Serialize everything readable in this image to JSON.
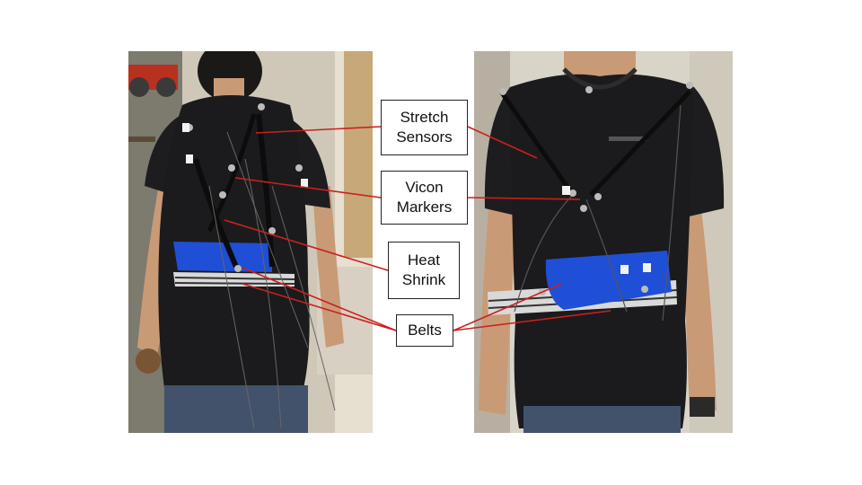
{
  "figure": {
    "labels": {
      "stretch_line1": "Stretch",
      "stretch_line2": "Sensors",
      "vicon_line1": "Vicon",
      "vicon_line2": "Markers",
      "heat_line1": "Heat",
      "heat_line2": "Shrink",
      "belts": "Belts"
    },
    "colors": {
      "leader_line": "#cc1f1f",
      "shirt": "#1b1b1d",
      "belt_blue": "#1f4fd6",
      "background_wall": "#c9c2b4"
    },
    "photos": [
      "back-view-photo",
      "front-view-photo"
    ]
  }
}
